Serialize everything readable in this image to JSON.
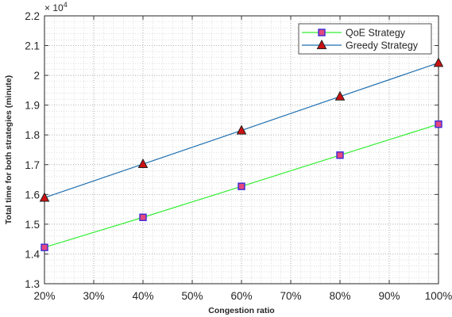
{
  "chart_data": {
    "type": "line",
    "title": "",
    "xlabel": "Congestion ratio",
    "ylabel": "Total time for both strategies (minute)",
    "x": [
      20,
      40,
      60,
      80,
      100
    ],
    "x_tick_values": [
      20,
      30,
      40,
      50,
      60,
      70,
      80,
      90,
      100
    ],
    "x_tick_labels": [
      "20%",
      "30%",
      "40%",
      "50%",
      "60%",
      "70%",
      "80%",
      "90%",
      "100%"
    ],
    "xlim": [
      20,
      100
    ],
    "y_multiplier_label": "× 10",
    "y_exponent": "4",
    "y_tick_values": [
      1.3,
      1.4,
      1.5,
      1.6,
      1.7,
      1.8,
      1.9,
      2.0,
      2.1,
      2.2
    ],
    "y_tick_labels": [
      "1.3",
      "1.4",
      "1.5",
      "1.6",
      "1.7",
      "1.8",
      "1.9",
      "2",
      "2.1",
      "2.2"
    ],
    "ylim": [
      1.3,
      2.2
    ],
    "series": [
      {
        "name": "QoE Strategy",
        "values": [
          1.422,
          1.523,
          1.627,
          1.732,
          1.836
        ],
        "line_color": "#33ee33",
        "marker": "square",
        "marker_fill": "#e4487e",
        "marker_edge": "#3a2ad8"
      },
      {
        "name": "Greedy Strategy",
        "values": [
          1.589,
          1.702,
          1.815,
          1.929,
          2.042
        ],
        "line_color": "#1f6fb0",
        "marker": "triangle",
        "marker_fill": "#cc1111",
        "marker_edge": "#222222"
      }
    ],
    "grid": true,
    "minor_grid": true,
    "legend_position": "top-right"
  }
}
